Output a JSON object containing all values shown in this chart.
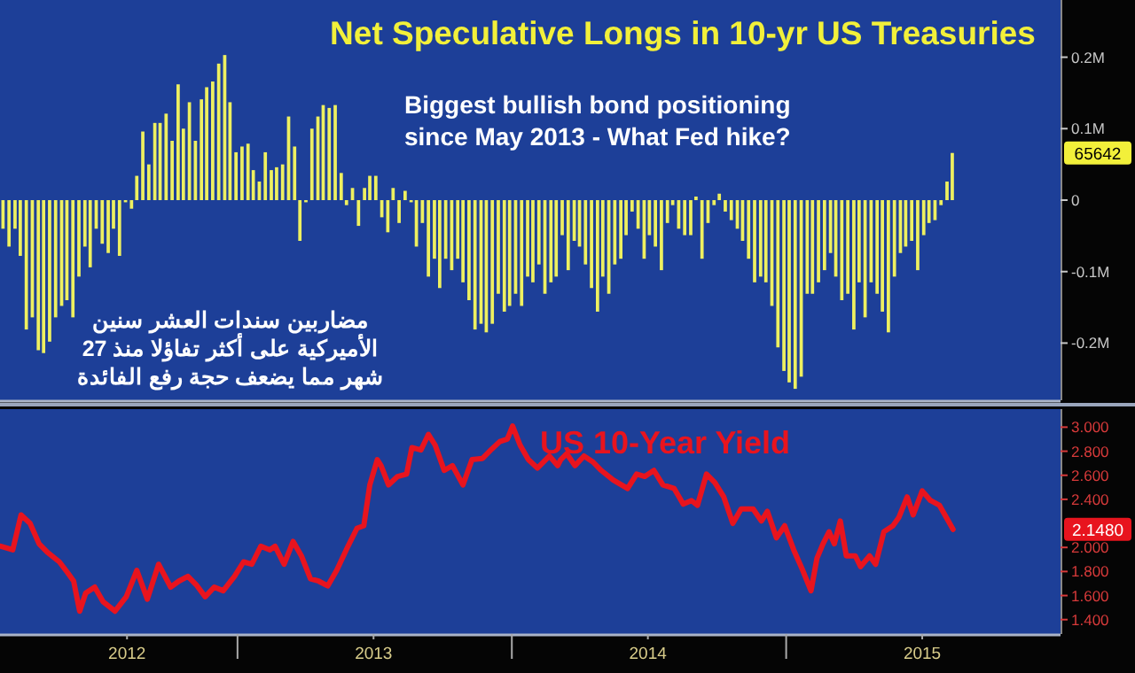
{
  "chart_data": [
    {
      "type": "bar",
      "title": "Net Speculative Longs in 10-yr US Treasuries",
      "color": "#eef060",
      "tick_labels": "y",
      "annotations": [
        "Biggest bullish bond positioning\nsince May 2013 - What Fed hike?",
        "مضاربين سندات العشر سنين\nالأميركية على أكثر تفاؤلا منذ 27\nشهر مما يضعف حجة رفع الفائدة",
        "65642"
      ],
      "xlim": [
        "2012-02-20",
        "2016-01-01"
      ],
      "ylim": [
        -0.28,
        0.28
      ],
      "yticks": [
        {
          "value": 0.2,
          "label": "0.2M"
        },
        {
          "value": 0.1,
          "label": "0.1M"
        },
        0,
        {
          "value": -0.1,
          "label": "-0.1M"
        },
        {
          "value": -0.2,
          "label": "-0.2M"
        }
      ],
      "x": [
        "2012-02-24",
        "2012-03-03",
        "2012-03-11",
        "2012-03-18",
        "2012-03-26",
        "2012-04-03",
        "2012-04-11",
        "2012-04-18",
        "2012-04-26",
        "2012-05-04",
        "2012-05-12",
        "2012-05-19",
        "2012-05-27",
        "2012-06-04",
        "2012-06-12",
        "2012-06-19",
        "2012-06-27",
        "2012-07-05",
        "2012-07-13",
        "2012-07-20",
        "2012-07-28",
        "2012-08-05",
        "2012-08-13",
        "2012-08-20",
        "2012-08-28",
        "2012-09-05",
        "2012-09-13",
        "2012-09-20",
        "2012-09-28",
        "2012-10-06",
        "2012-10-14",
        "2012-10-21",
        "2012-10-29",
        "2012-11-06",
        "2012-11-14",
        "2012-11-21",
        "2012-11-29",
        "2012-12-07",
        "2012-12-15",
        "2012-12-22",
        "2012-12-30",
        "2013-01-07",
        "2013-01-15",
        "2013-01-22",
        "2013-01-30",
        "2013-02-07",
        "2013-02-15",
        "2013-02-22",
        "2013-03-02",
        "2013-03-10",
        "2013-03-18",
        "2013-03-25",
        "2013-04-02",
        "2013-04-10",
        "2013-04-18",
        "2013-04-25",
        "2013-05-03",
        "2013-05-11",
        "2013-05-19",
        "2013-05-26",
        "2013-06-03",
        "2013-06-11",
        "2013-06-19",
        "2013-06-26",
        "2013-07-04",
        "2013-07-12",
        "2013-07-20",
        "2013-07-27",
        "2013-08-04",
        "2013-08-12",
        "2013-08-20",
        "2013-08-27",
        "2013-09-04",
        "2013-09-12",
        "2013-09-20",
        "2013-09-27",
        "2013-10-05",
        "2013-10-13",
        "2013-10-21",
        "2013-10-28",
        "2013-11-05",
        "2013-11-13",
        "2013-11-21",
        "2013-11-28",
        "2013-12-06",
        "2013-12-14",
        "2013-12-22",
        "2013-12-29",
        "2014-01-06",
        "2014-01-14",
        "2014-01-22",
        "2014-01-29",
        "2014-02-06",
        "2014-02-14",
        "2014-02-22",
        "2014-03-01",
        "2014-03-09",
        "2014-03-17",
        "2014-03-25",
        "2014-04-01",
        "2014-04-09",
        "2014-04-17",
        "2014-04-25",
        "2014-05-02",
        "2014-05-10",
        "2014-05-18",
        "2014-05-26",
        "2014-06-02",
        "2014-06-10",
        "2014-06-18",
        "2014-06-26",
        "2014-07-03",
        "2014-07-11",
        "2014-07-19",
        "2014-07-27",
        "2014-08-03",
        "2014-08-11",
        "2014-08-19",
        "2014-08-27",
        "2014-09-03",
        "2014-09-11",
        "2014-09-19",
        "2014-09-27",
        "2014-10-04",
        "2014-10-12",
        "2014-10-20",
        "2014-10-28",
        "2014-11-04",
        "2014-11-12",
        "2014-11-20",
        "2014-11-28",
        "2014-12-05",
        "2014-12-13",
        "2014-12-21",
        "2014-12-29",
        "2015-01-05",
        "2015-01-13",
        "2015-01-21",
        "2015-01-29",
        "2015-02-05",
        "2015-02-13",
        "2015-02-21",
        "2015-03-01",
        "2015-03-08",
        "2015-03-16",
        "2015-03-24",
        "2015-04-01",
        "2015-04-08",
        "2015-04-16",
        "2015-04-24",
        "2015-05-02",
        "2015-05-09",
        "2015-05-17",
        "2015-05-25",
        "2015-06-02",
        "2015-06-09",
        "2015-06-17",
        "2015-06-25",
        "2015-07-03",
        "2015-07-10",
        "2015-07-18",
        "2015-07-26",
        "2015-08-03",
        "2015-08-10"
      ],
      "values": [
        -0.04,
        -0.065,
        -0.04,
        -0.078,
        -0.181,
        -0.164,
        -0.21,
        -0.214,
        -0.198,
        -0.164,
        -0.148,
        -0.14,
        -0.164,
        -0.107,
        -0.065,
        -0.094,
        -0.04,
        -0.061,
        -0.074,
        -0.04,
        -0.078,
        -0.003,
        -0.012,
        0.034,
        0.096,
        0.05,
        0.108,
        0.108,
        0.121,
        0.083,
        0.162,
        0.1,
        0.137,
        0.083,
        0.141,
        0.158,
        0.166,
        0.191,
        0.203,
        0.137,
        0.067,
        0.075,
        0.079,
        0.042,
        0.026,
        0.067,
        0.042,
        0.046,
        0.05,
        0.117,
        0.075,
        -0.057,
        -0.003,
        0.1,
        0.117,
        0.133,
        0.129,
        0.133,
        0.038,
        -0.007,
        0.017,
        -0.036,
        0.017,
        0.034,
        0.034,
        -0.024,
        -0.045,
        0.017,
        -0.032,
        0.013,
        -0.003,
        -0.065,
        -0.032,
        -0.107,
        -0.082,
        -0.123,
        -0.082,
        -0.098,
        -0.082,
        -0.115,
        -0.14,
        -0.181,
        -0.173,
        -0.185,
        -0.173,
        -0.131,
        -0.156,
        -0.148,
        -0.131,
        -0.148,
        -0.107,
        -0.115,
        -0.09,
        -0.131,
        -0.115,
        -0.107,
        -0.049,
        -0.098,
        -0.057,
        -0.065,
        -0.09,
        -0.123,
        -0.156,
        -0.107,
        -0.131,
        -0.09,
        -0.082,
        -0.049,
        -0.016,
        -0.04,
        -0.082,
        -0.049,
        -0.065,
        -0.098,
        -0.032,
        -0.007,
        -0.04,
        -0.049,
        -0.049,
        0.005,
        -0.082,
        -0.032,
        -0.007,
        0.009,
        -0.016,
        -0.028,
        -0.04,
        -0.057,
        -0.082,
        -0.115,
        -0.107,
        -0.115,
        -0.148,
        -0.206,
        -0.239,
        -0.255,
        -0.264,
        -0.247,
        -0.131,
        -0.131,
        -0.115,
        -0.098,
        -0.074,
        -0.107,
        -0.14,
        -0.131,
        -0.181,
        -0.115,
        -0.164,
        -0.115,
        -0.131,
        -0.156,
        -0.185,
        -0.107,
        -0.074,
        -0.065,
        -0.057,
        -0.098,
        -0.049,
        -0.032,
        -0.028,
        -0.007,
        0.026,
        0.066
      ]
    },
    {
      "type": "line",
      "title": "US 10-Year Yield",
      "annotations": [
        "2.1480"
      ],
      "xlim": [
        "2012-02-20",
        "2016-01-01"
      ],
      "ylim": [
        1.28,
        3.15
      ],
      "xticks": [
        {
          "value": "2013-01-01",
          "label": null
        },
        {
          "value": "2014-01-01",
          "label": null
        },
        {
          "value": "2015-01-01",
          "label": null
        },
        {
          "value": "2012-08-07",
          "label": "2012"
        },
        {
          "value": "2013-07-01",
          "label": "2013"
        },
        {
          "value": "2014-07-01",
          "label": "2014"
        },
        {
          "value": "2015-07-01",
          "label": "2015"
        }
      ],
      "yticks": [
        {
          "value": 3.0,
          "label": "3.000"
        },
        {
          "value": 2.8,
          "label": "2.800"
        },
        {
          "value": 2.6,
          "label": "2.600"
        },
        {
          "value": 2.4,
          "label": "2.400"
        },
        {
          "value": 2.0,
          "label": "2.000"
        },
        {
          "value": 1.8,
          "label": "1.800"
        },
        {
          "value": 1.6,
          "label": "1.600"
        },
        {
          "value": 1.4,
          "label": "1.400"
        }
      ],
      "series": [
        {
          "color": "#e8141e",
          "x": [
            "2012-02-21",
            "2012-03-08",
            "2012-03-19",
            "2012-03-31",
            "2012-04-12",
            "2012-04-23",
            "2012-05-09",
            "2012-05-20",
            "2012-05-28",
            "2012-06-05",
            "2012-06-13",
            "2012-06-25",
            "2012-07-06",
            "2012-07-22",
            "2012-08-06",
            "2012-08-20",
            "2012-09-03",
            "2012-09-18",
            "2012-10-04",
            "2012-10-15",
            "2012-10-27",
            "2012-11-07",
            "2012-11-19",
            "2012-12-01",
            "2012-12-13",
            "2012-12-28",
            "2013-01-09",
            "2013-01-20",
            "2013-02-01",
            "2013-02-13",
            "2013-02-20",
            "2013-03-04",
            "2013-03-16",
            "2013-03-27",
            "2013-04-08",
            "2013-04-19",
            "2013-05-01",
            "2013-05-13",
            "2013-05-28",
            "2013-06-09",
            "2013-06-18",
            "2013-06-26",
            "2013-07-06",
            "2013-07-11",
            "2013-07-21",
            "2013-08-02",
            "2013-08-14",
            "2013-08-21",
            "2013-09-02",
            "2013-09-12",
            "2013-09-21",
            "2013-10-03",
            "2013-10-14",
            "2013-10-28",
            "2013-11-09",
            "2013-11-23",
            "2013-12-04",
            "2013-12-16",
            "2013-12-26",
            "2014-01-02",
            "2014-01-12",
            "2014-01-23",
            "2014-02-04",
            "2014-02-20",
            "2014-03-03",
            "2014-03-07",
            "2014-03-15",
            "2014-03-26",
            "2014-04-07",
            "2014-04-19",
            "2014-04-30",
            "2014-05-16",
            "2014-06-04",
            "2014-06-16",
            "2014-06-27",
            "2014-07-09",
            "2014-07-21",
            "2014-08-05",
            "2014-08-17",
            "2014-08-28",
            "2014-09-05",
            "2014-09-17",
            "2014-09-28",
            "2014-10-10",
            "2014-10-22",
            "2014-11-02",
            "2014-11-18",
            "2014-11-29",
            "2014-12-07",
            "2014-12-19",
            "2014-12-30",
            "2015-01-11",
            "2015-01-23",
            "2015-02-03",
            "2015-02-11",
            "2015-02-19",
            "2015-02-27",
            "2015-03-06",
            "2015-03-14",
            "2015-03-22",
            "2015-04-03",
            "2015-04-10",
            "2015-04-22",
            "2015-04-30",
            "2015-05-11",
            "2015-05-23",
            "2015-05-31",
            "2015-06-11",
            "2015-06-19",
            "2015-07-01",
            "2015-07-12",
            "2015-07-24",
            "2015-08-11"
          ],
          "values": [
            2.01,
            1.98,
            2.27,
            2.2,
            2.03,
            1.96,
            1.88,
            1.79,
            1.72,
            1.47,
            1.62,
            1.67,
            1.55,
            1.47,
            1.59,
            1.81,
            1.57,
            1.86,
            1.67,
            1.72,
            1.76,
            1.69,
            1.59,
            1.67,
            1.64,
            1.76,
            1.88,
            1.86,
            2.01,
            1.98,
            2.01,
            1.86,
            2.05,
            1.93,
            1.74,
            1.72,
            1.68,
            1.81,
            2.01,
            2.16,
            2.18,
            2.52,
            2.73,
            2.68,
            2.52,
            2.59,
            2.61,
            2.83,
            2.81,
            2.94,
            2.85,
            2.64,
            2.68,
            2.52,
            2.73,
            2.74,
            2.81,
            2.88,
            2.9,
            3.01,
            2.85,
            2.73,
            2.66,
            2.76,
            2.68,
            2.73,
            2.78,
            2.68,
            2.76,
            2.71,
            2.64,
            2.56,
            2.49,
            2.61,
            2.59,
            2.64,
            2.52,
            2.49,
            2.36,
            2.39,
            2.35,
            2.61,
            2.54,
            2.42,
            2.2,
            2.32,
            2.32,
            2.22,
            2.3,
            2.08,
            2.18,
            1.98,
            1.81,
            1.64,
            1.91,
            2.03,
            2.13,
            2.03,
            2.22,
            1.93,
            1.93,
            1.84,
            1.93,
            1.86,
            2.13,
            2.18,
            2.25,
            2.42,
            2.27,
            2.47,
            2.39,
            2.35,
            2.15
          ]
        }
      ]
    }
  ]
}
